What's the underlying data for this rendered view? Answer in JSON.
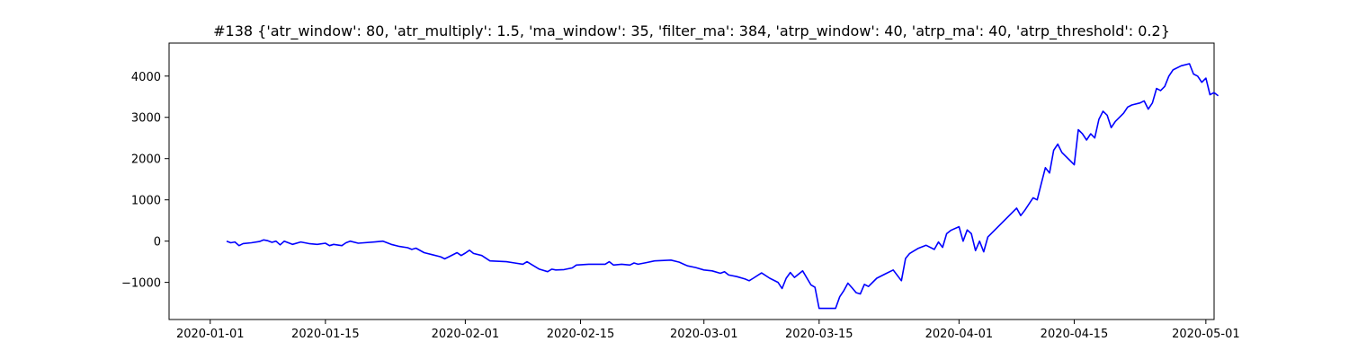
{
  "chart_data": {
    "type": "line",
    "title": "#138 {'atr_window': 80, 'atr_multiply': 1.5, 'ma_window': 35, 'filter_ma': 384, 'atrp_window': 40, 'atrp_ma': 40, 'atrp_threshold': 0.2}",
    "xlabel": "",
    "ylabel": "",
    "xlim": [
      "2019-12-27",
      "2020-05-02"
    ],
    "ylim": [
      -1900,
      4800
    ],
    "grid": false,
    "x_ticks": [
      "2020-01-01",
      "2020-01-15",
      "2020-02-01",
      "2020-02-15",
      "2020-03-01",
      "2020-03-15",
      "2020-04-01",
      "2020-04-15",
      "2020-05-01"
    ],
    "y_ticks": [
      -1000,
      0,
      1000,
      2000,
      3000,
      4000
    ],
    "series": [
      {
        "color": "#0000ff",
        "points": [
          [
            "2020-01-03",
            0
          ],
          [
            "2020-01-03 12:00",
            -40
          ],
          [
            "2020-01-04",
            -20
          ],
          [
            "2020-01-04 12:00",
            -110
          ],
          [
            "2020-01-05",
            -60
          ],
          [
            "2020-01-06",
            -40
          ],
          [
            "2020-01-07",
            -10
          ],
          [
            "2020-01-07 12:00",
            30
          ],
          [
            "2020-01-08",
            10
          ],
          [
            "2020-01-08 12:00",
            -30
          ],
          [
            "2020-01-09",
            0
          ],
          [
            "2020-01-09 12:00",
            -90
          ],
          [
            "2020-01-10",
            0
          ],
          [
            "2020-01-11",
            -80
          ],
          [
            "2020-01-12",
            -20
          ],
          [
            "2020-01-13",
            -60
          ],
          [
            "2020-01-14",
            -80
          ],
          [
            "2020-01-15",
            -50
          ],
          [
            "2020-01-15 12:00",
            -110
          ],
          [
            "2020-01-16",
            -80
          ],
          [
            "2020-01-17",
            -110
          ],
          [
            "2020-01-17 12:00",
            -40
          ],
          [
            "2020-01-18",
            0
          ],
          [
            "2020-01-19",
            -50
          ],
          [
            "2020-01-21",
            -20
          ],
          [
            "2020-01-22",
            0
          ],
          [
            "2020-01-23",
            -80
          ],
          [
            "2020-01-24",
            -130
          ],
          [
            "2020-01-25",
            -160
          ],
          [
            "2020-01-25 12:00",
            -200
          ],
          [
            "2020-01-26",
            -170
          ],
          [
            "2020-01-27",
            -280
          ],
          [
            "2020-01-28",
            -330
          ],
          [
            "2020-01-29",
            -380
          ],
          [
            "2020-01-29 12:00",
            -430
          ],
          [
            "2020-01-30",
            -380
          ],
          [
            "2020-01-31",
            -280
          ],
          [
            "2020-01-31 12:00",
            -350
          ],
          [
            "2020-02-01",
            -290
          ],
          [
            "2020-02-01 12:00",
            -220
          ],
          [
            "2020-02-02",
            -300
          ],
          [
            "2020-02-03",
            -350
          ],
          [
            "2020-02-04",
            -480
          ],
          [
            "2020-02-06",
            -500
          ],
          [
            "2020-02-07",
            -530
          ],
          [
            "2020-02-08",
            -560
          ],
          [
            "2020-02-08 12:00",
            -500
          ],
          [
            "2020-02-09",
            -560
          ],
          [
            "2020-02-10",
            -680
          ],
          [
            "2020-02-11",
            -740
          ],
          [
            "2020-02-11 12:00",
            -680
          ],
          [
            "2020-02-12",
            -700
          ],
          [
            "2020-02-13",
            -690
          ],
          [
            "2020-02-14",
            -650
          ],
          [
            "2020-02-14 12:00",
            -580
          ],
          [
            "2020-02-16",
            -560
          ],
          [
            "2020-02-18",
            -560
          ],
          [
            "2020-02-18 12:00",
            -500
          ],
          [
            "2020-02-19",
            -580
          ],
          [
            "2020-02-20",
            -560
          ],
          [
            "2020-02-21",
            -580
          ],
          [
            "2020-02-21 12:00",
            -530
          ],
          [
            "2020-02-22",
            -560
          ],
          [
            "2020-02-23",
            -520
          ],
          [
            "2020-02-24",
            -480
          ],
          [
            "2020-02-26",
            -460
          ],
          [
            "2020-02-27",
            -510
          ],
          [
            "2020-02-28",
            -600
          ],
          [
            "2020-02-29",
            -640
          ],
          [
            "2020-03-01",
            -700
          ],
          [
            "2020-03-02",
            -720
          ],
          [
            "2020-03-03",
            -780
          ],
          [
            "2020-03-03 12:00",
            -740
          ],
          [
            "2020-03-04",
            -820
          ],
          [
            "2020-03-05",
            -860
          ],
          [
            "2020-03-06",
            -920
          ],
          [
            "2020-03-06 12:00",
            -960
          ],
          [
            "2020-03-07",
            -900
          ],
          [
            "2020-03-08",
            -770
          ],
          [
            "2020-03-09",
            -900
          ],
          [
            "2020-03-10",
            -1000
          ],
          [
            "2020-03-10 12:00",
            -1150
          ],
          [
            "2020-03-11",
            -900
          ],
          [
            "2020-03-11 12:00",
            -760
          ],
          [
            "2020-03-12",
            -880
          ],
          [
            "2020-03-13",
            -720
          ],
          [
            "2020-03-14",
            -1060
          ],
          [
            "2020-03-14 12:00",
            -1120
          ],
          [
            "2020-03-15",
            -1630
          ],
          [
            "2020-03-16",
            -1630
          ],
          [
            "2020-03-17",
            -1630
          ],
          [
            "2020-03-17 12:00",
            -1350
          ],
          [
            "2020-03-18",
            -1200
          ],
          [
            "2020-03-18 12:00",
            -1020
          ],
          [
            "2020-03-19",
            -1130
          ],
          [
            "2020-03-19 12:00",
            -1250
          ],
          [
            "2020-03-20",
            -1280
          ],
          [
            "2020-03-20 12:00",
            -1050
          ],
          [
            "2020-03-21",
            -1100
          ],
          [
            "2020-03-22",
            -900
          ],
          [
            "2020-03-23",
            -800
          ],
          [
            "2020-03-24",
            -700
          ],
          [
            "2020-03-25",
            -960
          ],
          [
            "2020-03-25 12:00",
            -420
          ],
          [
            "2020-03-26",
            -300
          ],
          [
            "2020-03-27",
            -180
          ],
          [
            "2020-03-28",
            -100
          ],
          [
            "2020-03-29",
            -200
          ],
          [
            "2020-03-29 12:00",
            -20
          ],
          [
            "2020-03-30",
            -150
          ],
          [
            "2020-03-30 12:00",
            180
          ],
          [
            "2020-03-31",
            260
          ],
          [
            "2020-04-01",
            350
          ],
          [
            "2020-04-01 12:00",
            0
          ],
          [
            "2020-04-02",
            270
          ],
          [
            "2020-04-02 12:00",
            180
          ],
          [
            "2020-04-03",
            -230
          ],
          [
            "2020-04-03 12:00",
            0
          ],
          [
            "2020-04-04",
            -260
          ],
          [
            "2020-04-04 12:00",
            100
          ],
          [
            "2020-04-06",
            400
          ],
          [
            "2020-04-08",
            800
          ],
          [
            "2020-04-08 12:00",
            620
          ],
          [
            "2020-04-09",
            750
          ],
          [
            "2020-04-10",
            1050
          ],
          [
            "2020-04-10 12:00",
            1000
          ],
          [
            "2020-04-11",
            1400
          ],
          [
            "2020-04-11 12:00",
            1780
          ],
          [
            "2020-04-12",
            1650
          ],
          [
            "2020-04-12 12:00",
            2200
          ],
          [
            "2020-04-13",
            2350
          ],
          [
            "2020-04-13 12:00",
            2150
          ],
          [
            "2020-04-15",
            1850
          ],
          [
            "2020-04-15 12:00",
            2700
          ],
          [
            "2020-04-16",
            2600
          ],
          [
            "2020-04-16 12:00",
            2450
          ],
          [
            "2020-04-17",
            2600
          ],
          [
            "2020-04-17 12:00",
            2500
          ],
          [
            "2020-04-18",
            2950
          ],
          [
            "2020-04-18 12:00",
            3150
          ],
          [
            "2020-04-19",
            3050
          ],
          [
            "2020-04-19 12:00",
            2750
          ],
          [
            "2020-04-20",
            2900
          ],
          [
            "2020-04-21",
            3100
          ],
          [
            "2020-04-21 12:00",
            3250
          ],
          [
            "2020-04-22",
            3300
          ],
          [
            "2020-04-23",
            3350
          ],
          [
            "2020-04-23 12:00",
            3400
          ],
          [
            "2020-04-24",
            3200
          ],
          [
            "2020-04-24 12:00",
            3350
          ],
          [
            "2020-04-25",
            3700
          ],
          [
            "2020-04-25 12:00",
            3650
          ],
          [
            "2020-04-26",
            3750
          ],
          [
            "2020-04-26 12:00",
            4000
          ],
          [
            "2020-04-27",
            4150
          ],
          [
            "2020-04-28",
            4250
          ],
          [
            "2020-04-29",
            4300
          ],
          [
            "2020-04-29 12:00",
            4050
          ],
          [
            "2020-04-30",
            4000
          ],
          [
            "2020-04-30 12:00",
            3850
          ],
          [
            "2020-05-01",
            3950
          ],
          [
            "2020-05-01 12:00",
            3550
          ],
          [
            "2020-05-02",
            3600
          ],
          [
            "2020-05-02 12:00",
            3520
          ]
        ]
      }
    ]
  }
}
